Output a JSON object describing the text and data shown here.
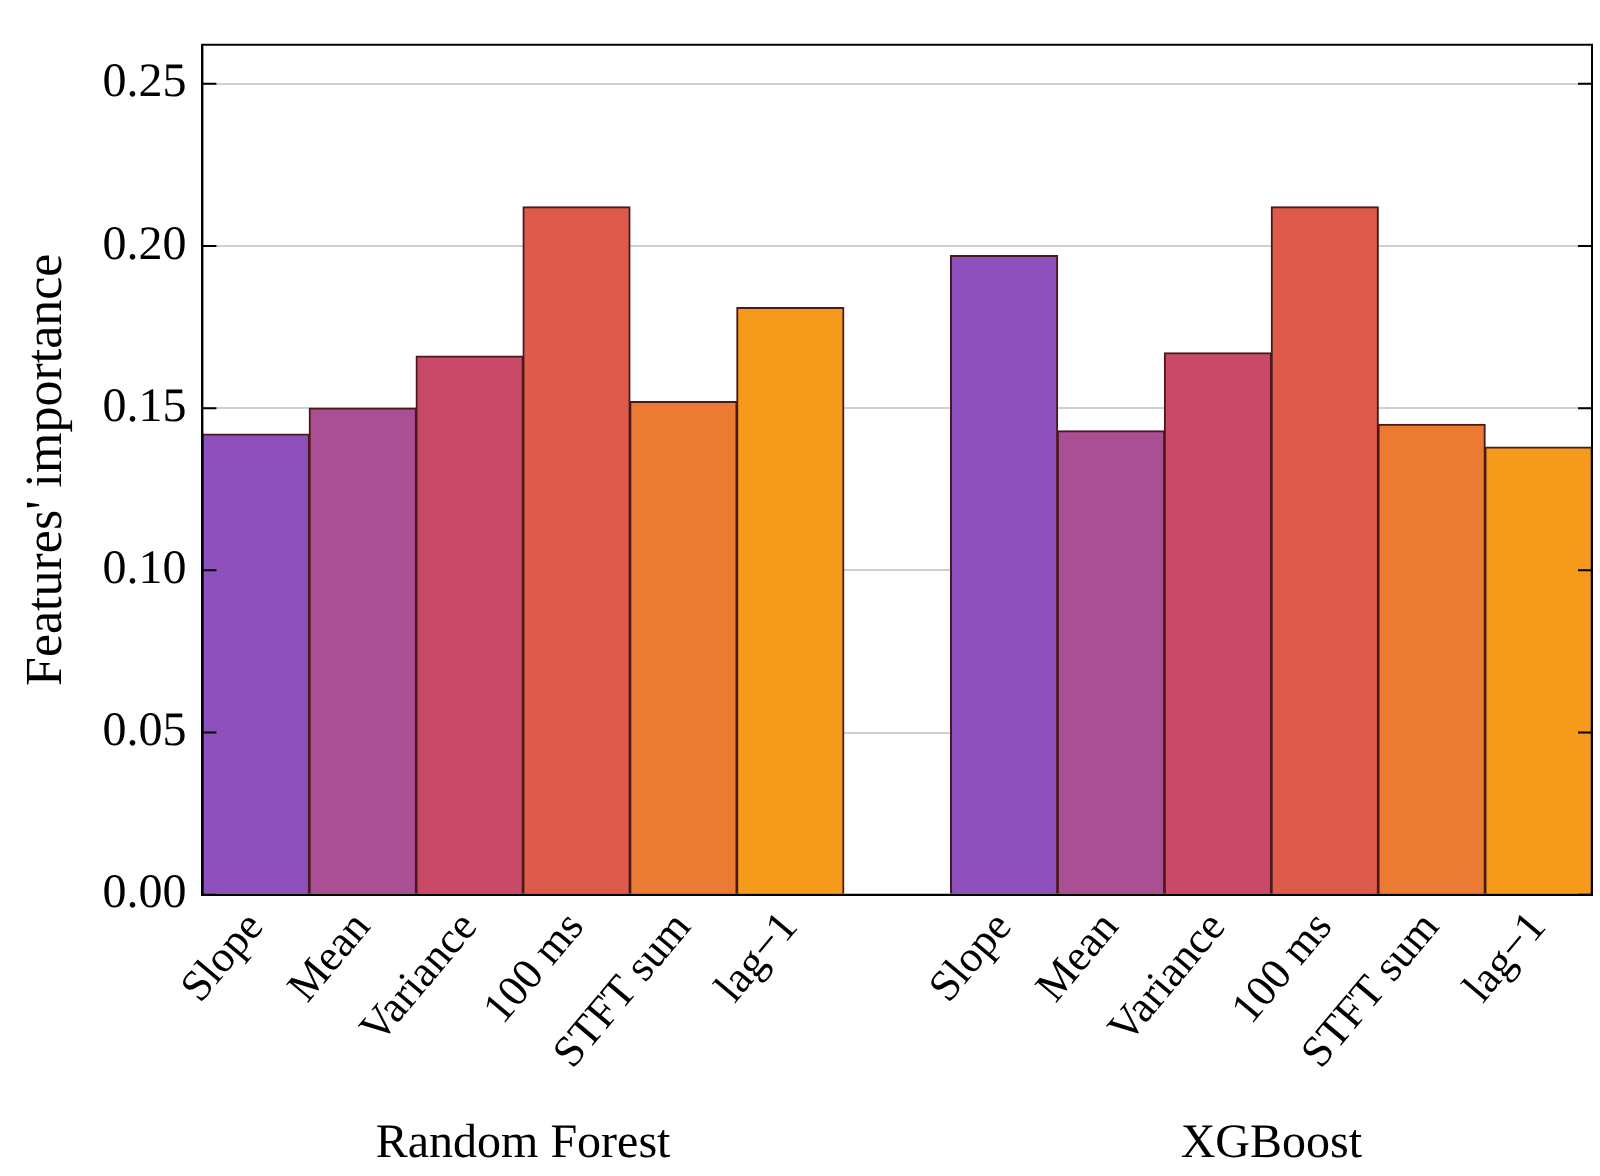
{
  "chart_data": {
    "type": "bar",
    "ylabel": "Features' importance",
    "categories": [
      "Slope",
      "Mean",
      "Variance",
      "100 ms",
      "STFT sum",
      "lag−1",
      null,
      "Slope",
      "Mean",
      "Variance",
      "100 ms",
      "STFT sum",
      "lag−1"
    ],
    "values": [
      0.142,
      0.15,
      0.166,
      0.212,
      0.152,
      0.181,
      null,
      0.197,
      0.143,
      0.167,
      0.212,
      0.145,
      0.138
    ],
    "colors": [
      "#8e50bd",
      "#aa4f93",
      "#c84a68",
      "#de5a4b",
      "#eb7b33",
      "#f59a1b",
      null,
      "#8e50bd",
      "#aa4f93",
      "#c84a68",
      "#de5a4b",
      "#eb7b33",
      "#f59a1b"
    ],
    "ylim": [
      0,
      0.262
    ],
    "yticks": [
      {
        "value": 0,
        "label": "0.00"
      },
      {
        "value": 0.05,
        "label": "0.05"
      },
      {
        "value": 0.1,
        "label": "0.10"
      },
      {
        "value": 0.15,
        "label": "0.15"
      },
      {
        "value": 0.2,
        "label": "0.20"
      },
      {
        "value": 0.25,
        "label": "0.25"
      }
    ],
    "grid": "y",
    "legend": false,
    "annotations": [
      "Random Forest",
      "XGBoost"
    ]
  }
}
